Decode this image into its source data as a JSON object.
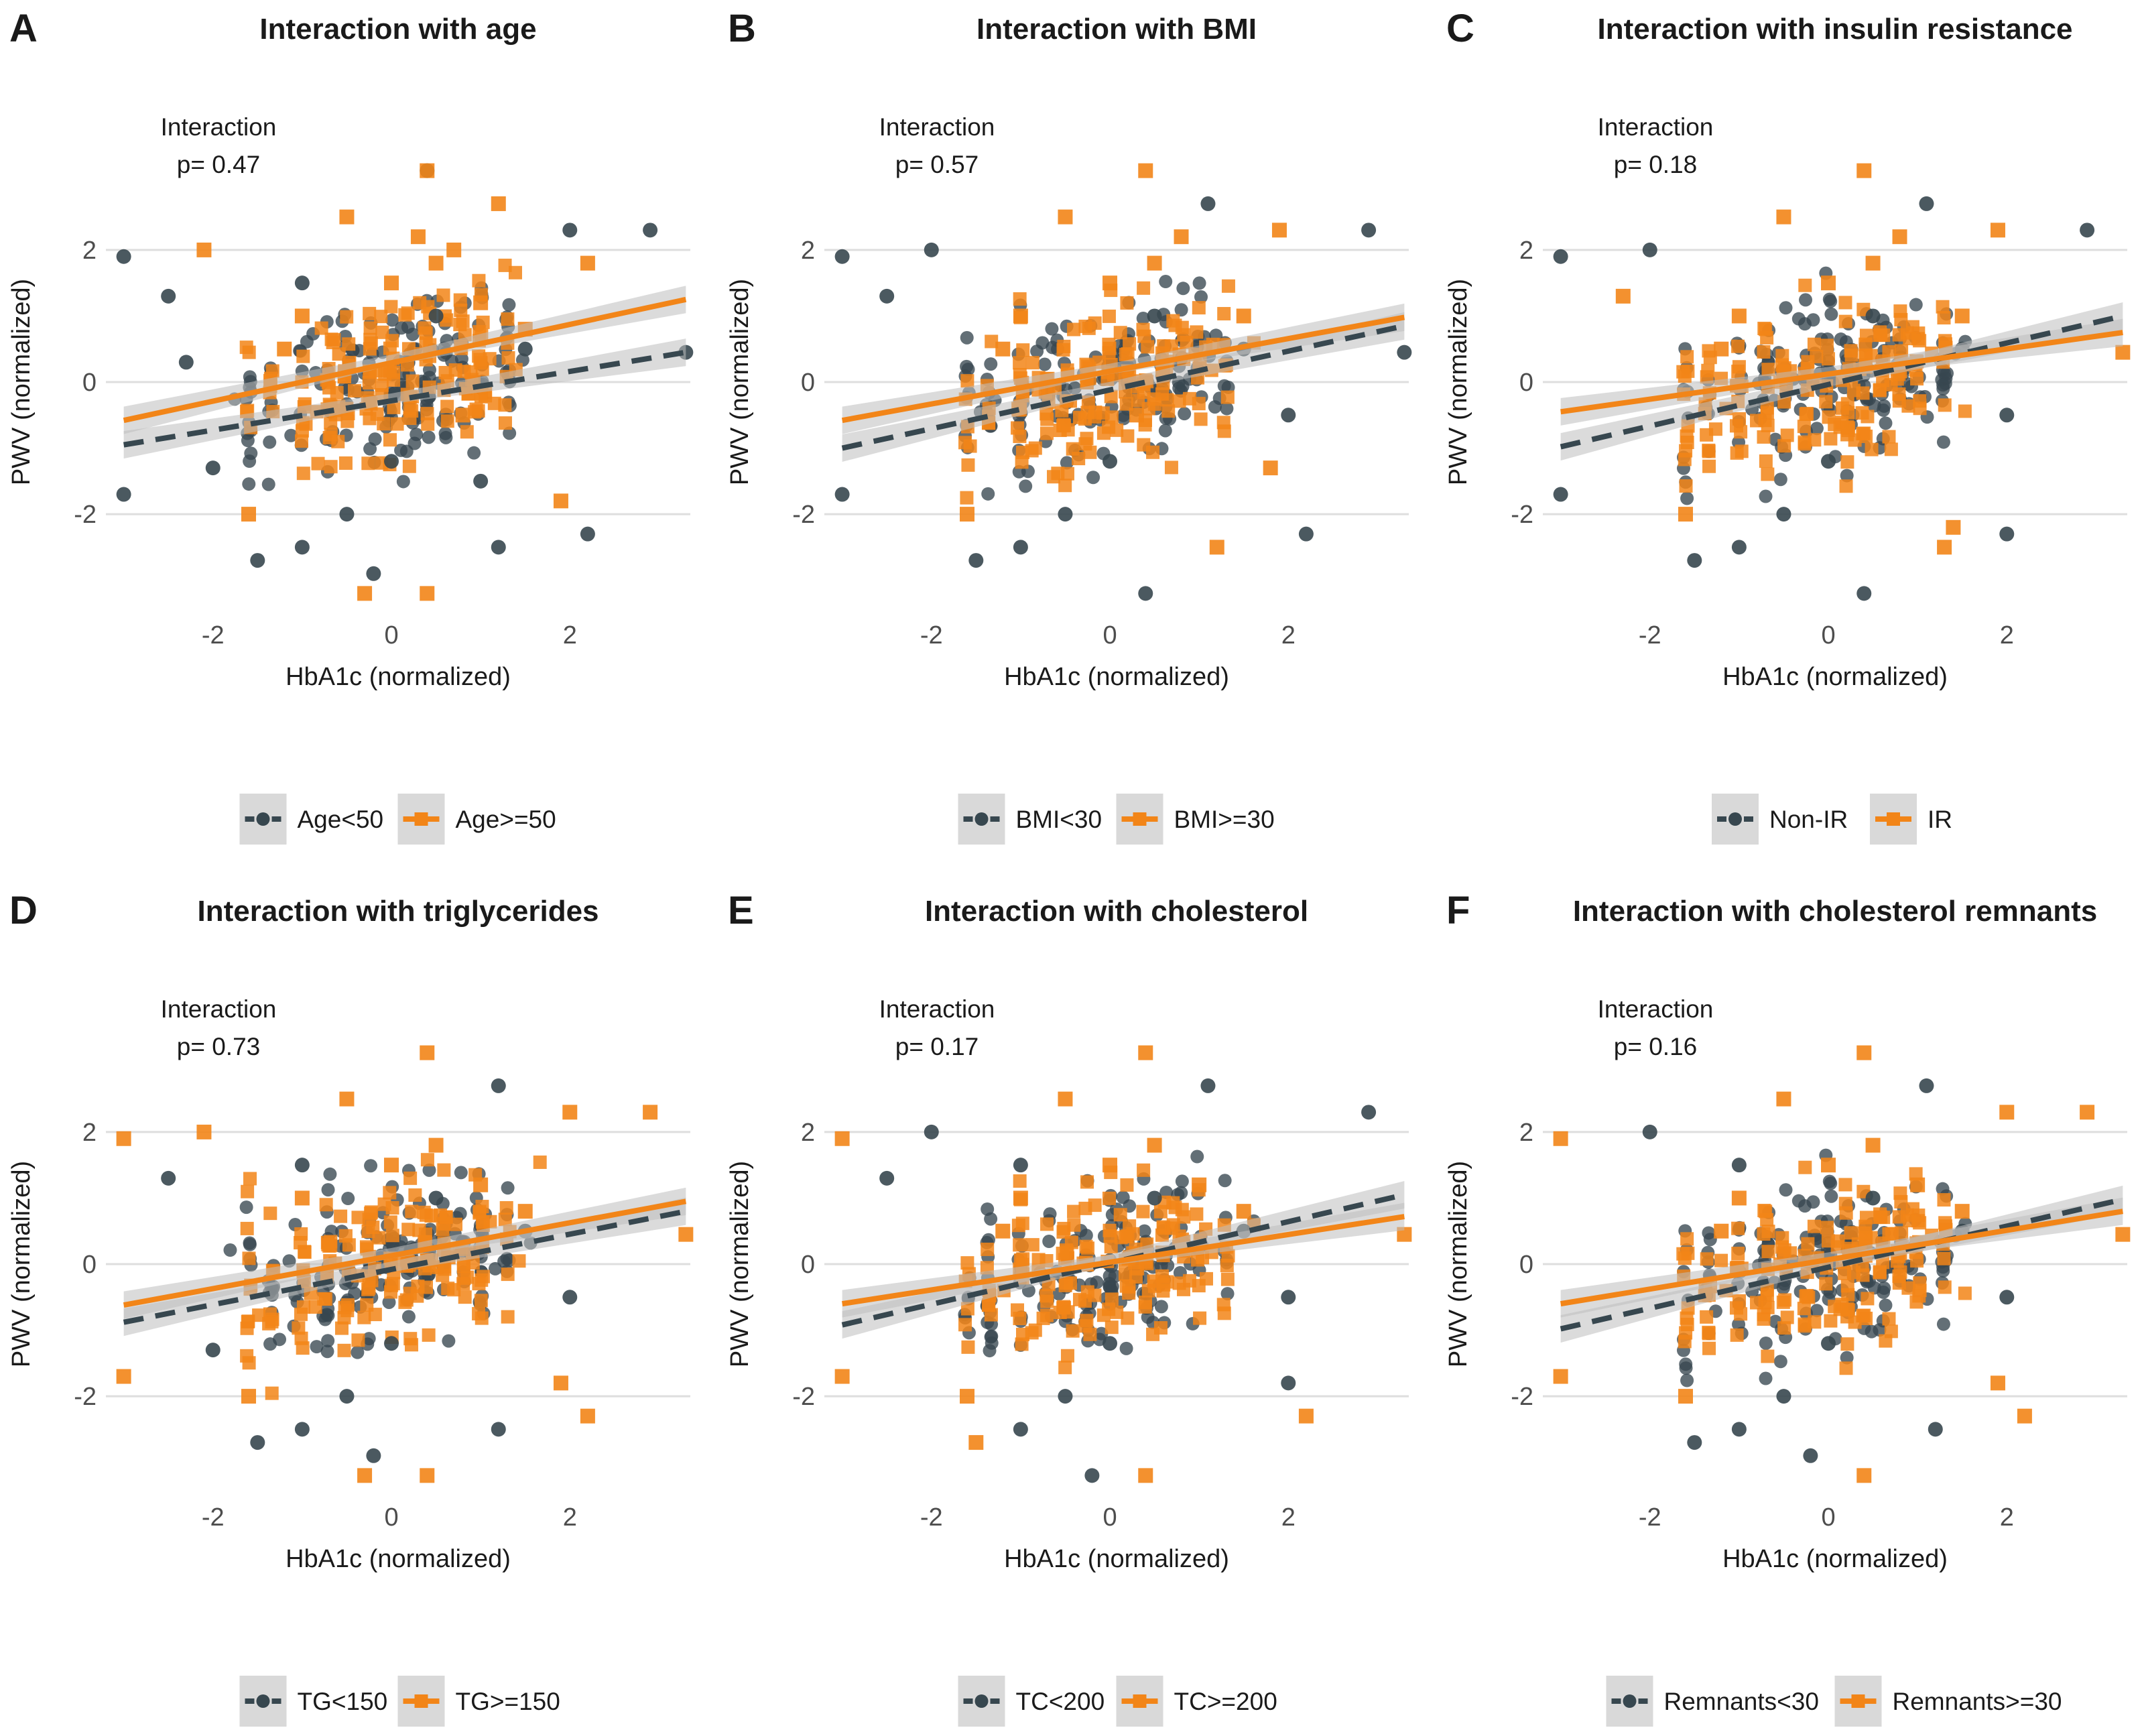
{
  "figure": {
    "x_axis_label": "HbA1c (normalized)",
    "y_axis_label": "PWV (normalized)",
    "interaction_label": "Interaction",
    "x_ticks": [
      -2,
      0,
      2
    ],
    "y_ticks": [
      -2,
      0,
      2
    ],
    "xlim": [
      -3.2,
      3.35
    ],
    "ylim": [
      -3.45,
      3.45
    ]
  },
  "colors": {
    "group_low": "#37474f",
    "group_high": "#f28518",
    "gridline": "#dedede",
    "ribbon": "#bdbdbd",
    "text": "#1a1a1a",
    "tick_text": "#4d4d4d"
  },
  "panels": [
    {
      "letter": "A",
      "title": "Interaction with age",
      "p_value": "p= 0.47",
      "legend": [
        "Age<50",
        "Age>=50"
      ]
    },
    {
      "letter": "B",
      "title": "Interaction with BMI",
      "p_value": "p= 0.57",
      "legend": [
        "BMI<30",
        "BMI>=30"
      ]
    },
    {
      "letter": "C",
      "title": "Interaction with insulin resistance",
      "p_value": "p= 0.18",
      "legend": [
        "Non-IR",
        "IR"
      ]
    },
    {
      "letter": "D",
      "title": "Interaction with triglycerides",
      "p_value": "p= 0.73",
      "legend": [
        "TG<150",
        "TG>=150"
      ]
    },
    {
      "letter": "E",
      "title": "Interaction with cholesterol",
      "p_value": "p= 0.17",
      "legend": [
        "TC<200",
        "TC>=200"
      ]
    },
    {
      "letter": "F",
      "title": "Interaction with cholesterol remnants",
      "p_value": "p= 0.16",
      "legend": [
        "Remnants<30",
        "Remnants>=30"
      ]
    }
  ],
  "chart_data": [
    {
      "type": "scatter",
      "title": "Interaction with age",
      "xlabel": "HbA1c (normalized)",
      "ylabel": "PWV (normalized)",
      "xlim": [
        -3.2,
        3.35
      ],
      "ylim": [
        -3.45,
        3.45
      ],
      "series": [
        {
          "name": "Age<50",
          "style": "dashed",
          "fit_line": [
            [
              -3.0,
              -0.95
            ],
            [
              3.3,
              0.45
            ]
          ],
          "points": [
            [
              -3.0,
              1.9
            ],
            [
              -3.0,
              -1.7
            ],
            [
              -2.5,
              1.3
            ],
            [
              -2.3,
              0.3
            ],
            [
              -2.0,
              -1.3
            ],
            [
              -1.5,
              -2.7
            ],
            [
              -1.0,
              -2.5
            ],
            [
              -1.0,
              1.5
            ],
            [
              -0.5,
              -2.0
            ],
            [
              0.0,
              -1.2
            ],
            [
              0.5,
              1.0
            ],
            [
              1.0,
              -1.5
            ],
            [
              1.5,
              0.5
            ],
            [
              2.0,
              2.3
            ],
            [
              2.2,
              -2.3
            ],
            [
              2.9,
              2.3
            ],
            [
              3.3,
              0.45
            ],
            [
              0.4,
              3.2
            ],
            [
              -0.2,
              -2.9
            ],
            [
              1.2,
              -2.5
            ]
          ]
        },
        {
          "name": "Age>=50",
          "style": "solid",
          "fit_line": [
            [
              -3.0,
              -0.58
            ],
            [
              3.3,
              1.25
            ]
          ],
          "points": [
            [
              -2.1,
              2.0
            ],
            [
              -1.6,
              -2.0
            ],
            [
              -1.0,
              1.0
            ],
            [
              -0.5,
              2.5
            ],
            [
              0.0,
              1.5
            ],
            [
              0.3,
              2.2
            ],
            [
              0.4,
              3.2
            ],
            [
              0.4,
              -3.2
            ],
            [
              0.5,
              1.8
            ],
            [
              0.7,
              2.0
            ],
            [
              1.0,
              1.2
            ],
            [
              1.2,
              2.7
            ],
            [
              1.5,
              0.8
            ],
            [
              1.9,
              -1.8
            ],
            [
              2.2,
              1.8
            ],
            [
              -0.3,
              -3.2
            ],
            [
              -1.2,
              0.5
            ],
            [
              0.8,
              -0.5
            ]
          ]
        }
      ]
    },
    {
      "type": "scatter",
      "title": "Interaction with BMI",
      "xlabel": "HbA1c (normalized)",
      "ylabel": "PWV (normalized)",
      "xlim": [
        -3.2,
        3.35
      ],
      "ylim": [
        -3.45,
        3.45
      ],
      "series": [
        {
          "name": "BMI<30",
          "style": "dashed",
          "fit_line": [
            [
              -3.0,
              -1.0
            ],
            [
              3.3,
              0.85
            ]
          ],
          "points": [
            [
              -3.0,
              1.9
            ],
            [
              -3.0,
              -1.7
            ],
            [
              -2.5,
              1.3
            ],
            [
              -2.0,
              2.0
            ],
            [
              -1.5,
              -2.7
            ],
            [
              -1.0,
              -2.5
            ],
            [
              -0.5,
              -2.0
            ],
            [
              0.0,
              -1.2
            ],
            [
              0.4,
              -3.2
            ],
            [
              0.5,
              1.0
            ],
            [
              1.1,
              2.7
            ],
            [
              1.5,
              0.5
            ],
            [
              2.0,
              -0.5
            ],
            [
              2.2,
              -2.3
            ],
            [
              2.9,
              2.3
            ],
            [
              3.3,
              0.45
            ]
          ]
        },
        {
          "name": "BMI>=30",
          "style": "solid",
          "fit_line": [
            [
              -3.0,
              -0.58
            ],
            [
              3.3,
              0.98
            ]
          ],
          "points": [
            [
              -1.6,
              -2.0
            ],
            [
              -1.0,
              1.0
            ],
            [
              -0.5,
              2.5
            ],
            [
              0.0,
              1.5
            ],
            [
              0.4,
              3.2
            ],
            [
              0.5,
              1.8
            ],
            [
              0.8,
              2.2
            ],
            [
              1.2,
              -2.5
            ],
            [
              1.5,
              1.0
            ],
            [
              1.9,
              2.3
            ],
            [
              1.8,
              -1.3
            ],
            [
              -1.2,
              0.5
            ],
            [
              0.3,
              -0.5
            ]
          ]
        }
      ]
    },
    {
      "type": "scatter",
      "title": "Interaction with insulin resistance",
      "xlabel": "HbA1c (normalized)",
      "ylabel": "PWV (normalized)",
      "xlim": [
        -3.2,
        3.35
      ],
      "ylim": [
        -3.45,
        3.45
      ],
      "series": [
        {
          "name": "Non-IR",
          "style": "dashed",
          "fit_line": [
            [
              -3.0,
              -0.98
            ],
            [
              3.3,
              1.0
            ]
          ],
          "points": [
            [
              -3.0,
              1.9
            ],
            [
              -3.0,
              -1.7
            ],
            [
              -2.0,
              2.0
            ],
            [
              -1.5,
              -2.7
            ],
            [
              -1.0,
              -2.5
            ],
            [
              -0.5,
              -2.0
            ],
            [
              0.0,
              -1.2
            ],
            [
              0.4,
              -3.2
            ],
            [
              0.5,
              1.0
            ],
            [
              1.1,
              2.7
            ],
            [
              1.5,
              0.5
            ],
            [
              2.0,
              -0.5
            ],
            [
              2.0,
              -2.3
            ],
            [
              2.9,
              2.3
            ]
          ]
        },
        {
          "name": "IR",
          "style": "solid",
          "fit_line": [
            [
              -3.0,
              -0.45
            ],
            [
              3.3,
              0.75
            ]
          ],
          "points": [
            [
              -2.3,
              1.3
            ],
            [
              -1.6,
              -2.0
            ],
            [
              -1.0,
              1.0
            ],
            [
              -0.5,
              2.5
            ],
            [
              0.0,
              1.5
            ],
            [
              0.4,
              3.2
            ],
            [
              0.5,
              1.8
            ],
            [
              0.8,
              2.2
            ],
            [
              1.3,
              -2.5
            ],
            [
              1.5,
              1.0
            ],
            [
              1.9,
              2.3
            ],
            [
              1.4,
              -2.2
            ],
            [
              3.3,
              0.45
            ],
            [
              -1.2,
              0.5
            ]
          ]
        }
      ]
    },
    {
      "type": "scatter",
      "title": "Interaction with triglycerides",
      "xlabel": "HbA1c (normalized)",
      "ylabel": "PWV (normalized)",
      "xlim": [
        -3.2,
        3.35
      ],
      "ylim": [
        -3.45,
        3.45
      ],
      "series": [
        {
          "name": "TG<150",
          "style": "dashed",
          "fit_line": [
            [
              -3.0,
              -0.88
            ],
            [
              3.3,
              0.8
            ]
          ],
          "points": [
            [
              -2.5,
              1.3
            ],
            [
              -2.0,
              -1.3
            ],
            [
              -1.5,
              -2.7
            ],
            [
              -1.0,
              -2.5
            ],
            [
              -1.0,
              1.5
            ],
            [
              -0.5,
              -2.0
            ],
            [
              0.0,
              -1.2
            ],
            [
              0.5,
              1.0
            ],
            [
              1.2,
              2.7
            ],
            [
              1.2,
              -2.5
            ],
            [
              1.5,
              0.5
            ],
            [
              2.0,
              -0.5
            ],
            [
              -0.2,
              -2.9
            ]
          ]
        },
        {
          "name": "TG>=150",
          "style": "solid",
          "fit_line": [
            [
              -3.0,
              -0.62
            ],
            [
              3.3,
              0.95
            ]
          ],
          "points": [
            [
              -3.0,
              1.9
            ],
            [
              -3.0,
              -1.7
            ],
            [
              -2.1,
              2.0
            ],
            [
              -1.6,
              -2.0
            ],
            [
              -1.0,
              1.0
            ],
            [
              -0.5,
              2.5
            ],
            [
              0.0,
              1.5
            ],
            [
              0.4,
              3.2
            ],
            [
              0.4,
              -3.2
            ],
            [
              0.5,
              1.8
            ],
            [
              1.0,
              1.2
            ],
            [
              1.5,
              0.8
            ],
            [
              1.9,
              -1.8
            ],
            [
              2.0,
              2.3
            ],
            [
              2.2,
              -2.3
            ],
            [
              2.9,
              2.3
            ],
            [
              3.3,
              0.45
            ],
            [
              -0.3,
              -3.2
            ]
          ]
        }
      ]
    },
    {
      "type": "scatter",
      "title": "Interaction with cholesterol",
      "xlabel": "HbA1c (normalized)",
      "ylabel": "PWV (normalized)",
      "xlim": [
        -3.2,
        3.35
      ],
      "ylim": [
        -3.45,
        3.45
      ],
      "series": [
        {
          "name": "TC<200",
          "style": "dashed",
          "fit_line": [
            [
              -3.0,
              -0.92
            ],
            [
              3.3,
              1.05
            ]
          ],
          "points": [
            [
              -2.5,
              1.3
            ],
            [
              -2.0,
              2.0
            ],
            [
              -1.0,
              -2.5
            ],
            [
              -1.0,
              1.5
            ],
            [
              -0.5,
              -2.0
            ],
            [
              0.0,
              -1.2
            ],
            [
              0.5,
              1.0
            ],
            [
              1.1,
              2.7
            ],
            [
              1.5,
              0.5
            ],
            [
              2.0,
              -0.5
            ],
            [
              2.0,
              -1.8
            ],
            [
              2.9,
              2.3
            ],
            [
              -0.2,
              -3.2
            ]
          ]
        },
        {
          "name": "TC>=200",
          "style": "solid",
          "fit_line": [
            [
              -3.0,
              -0.6
            ],
            [
              3.3,
              0.72
            ]
          ],
          "points": [
            [
              -3.0,
              1.9
            ],
            [
              -3.0,
              -1.7
            ],
            [
              -1.6,
              -2.0
            ],
            [
              -1.5,
              -2.7
            ],
            [
              -1.0,
              1.0
            ],
            [
              -0.5,
              2.5
            ],
            [
              0.0,
              1.5
            ],
            [
              0.4,
              3.2
            ],
            [
              0.4,
              -3.2
            ],
            [
              0.5,
              1.8
            ],
            [
              1.0,
              1.2
            ],
            [
              1.5,
              0.8
            ],
            [
              2.2,
              -2.3
            ],
            [
              3.3,
              0.45
            ],
            [
              -1.2,
              0.5
            ]
          ]
        }
      ]
    },
    {
      "type": "scatter",
      "title": "Interaction with cholesterol remnants",
      "xlabel": "HbA1c (normalized)",
      "ylabel": "PWV (normalized)",
      "xlim": [
        -3.2,
        3.35
      ],
      "ylim": [
        -3.45,
        3.45
      ],
      "series": [
        {
          "name": "Remnants<30",
          "style": "dashed",
          "fit_line": [
            [
              -3.0,
              -0.98
            ],
            [
              3.3,
              0.98
            ]
          ],
          "points": [
            [
              -2.0,
              2.0
            ],
            [
              -1.5,
              -2.7
            ],
            [
              -1.0,
              -2.5
            ],
            [
              -1.0,
              1.5
            ],
            [
              -0.5,
              -2.0
            ],
            [
              0.0,
              -1.2
            ],
            [
              0.5,
              1.0
            ],
            [
              1.1,
              2.7
            ],
            [
              1.5,
              0.5
            ],
            [
              2.0,
              -0.5
            ],
            [
              -0.2,
              -2.9
            ],
            [
              1.2,
              -2.5
            ]
          ]
        },
        {
          "name": "Remnants>=30",
          "style": "solid",
          "fit_line": [
            [
              -3.0,
              -0.6
            ],
            [
              3.3,
              0.8
            ]
          ],
          "points": [
            [
              -3.0,
              1.9
            ],
            [
              -3.0,
              -1.7
            ],
            [
              -1.6,
              -2.0
            ],
            [
              -1.0,
              1.0
            ],
            [
              -0.5,
              2.5
            ],
            [
              0.0,
              1.5
            ],
            [
              0.4,
              3.2
            ],
            [
              0.4,
              -3.2
            ],
            [
              0.5,
              1.8
            ],
            [
              1.0,
              1.2
            ],
            [
              1.5,
              0.8
            ],
            [
              1.9,
              -1.8
            ],
            [
              2.0,
              2.3
            ],
            [
              2.2,
              -2.3
            ],
            [
              2.9,
              2.3
            ],
            [
              3.3,
              0.45
            ],
            [
              -1.2,
              0.5
            ]
          ]
        }
      ]
    }
  ]
}
